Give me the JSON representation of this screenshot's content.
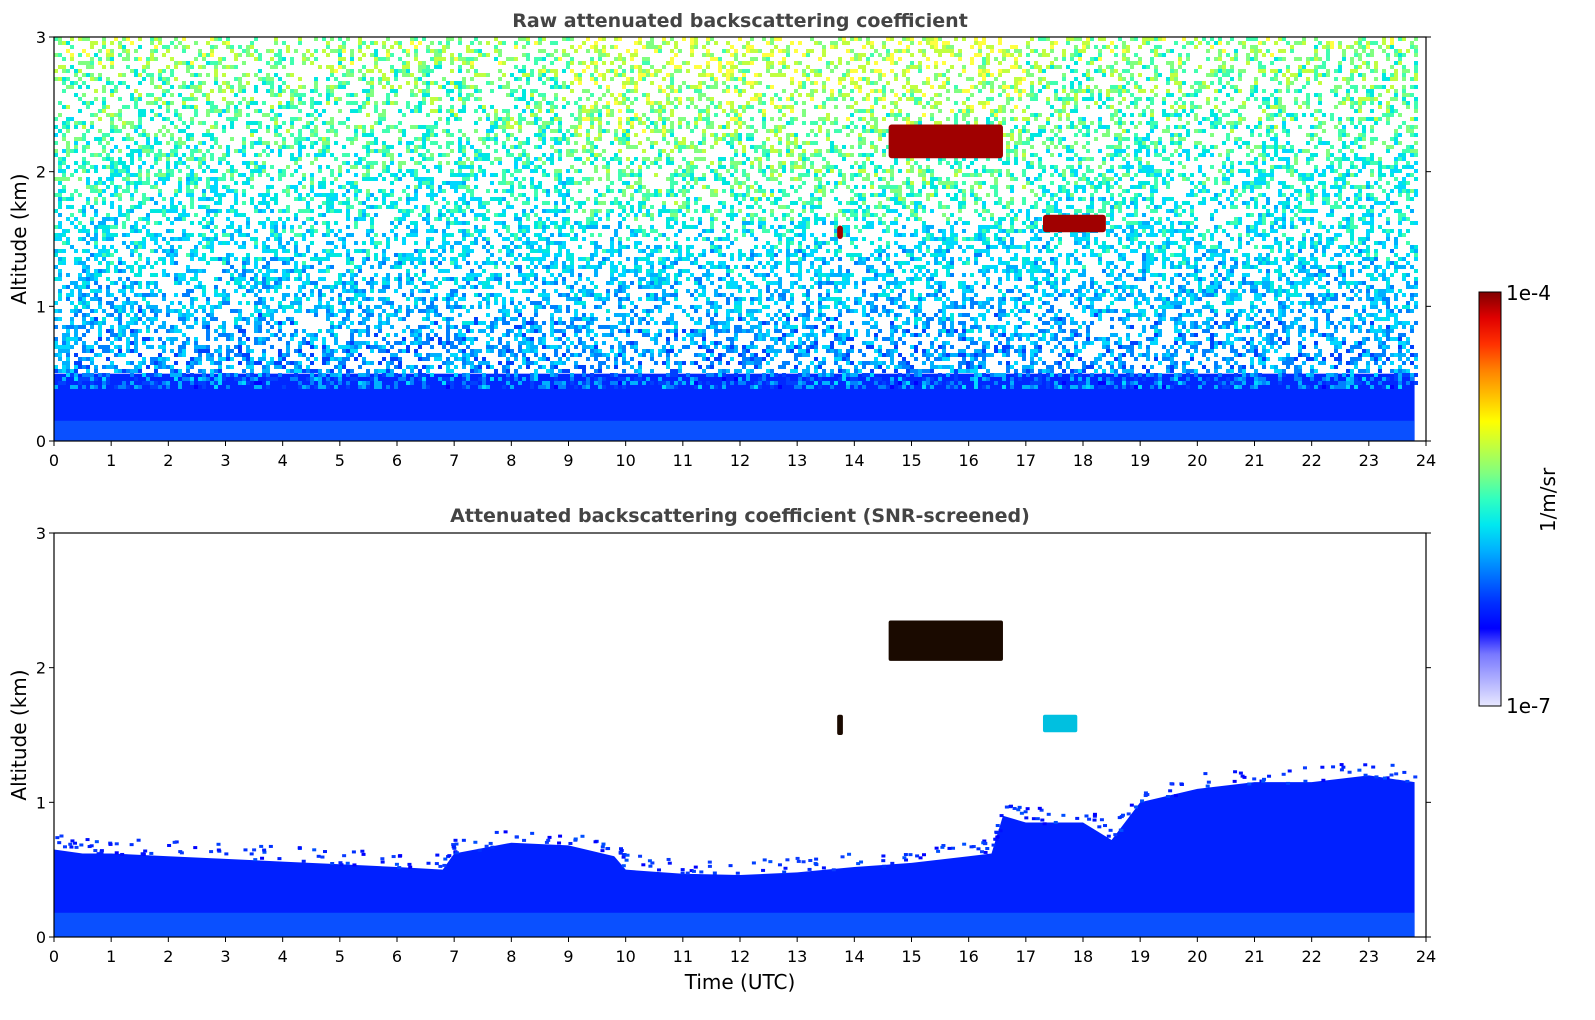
{
  "chart_data": [
    {
      "type": "heatmap",
      "title": "Raw attenuated backscattering coefficient",
      "xlabel": "",
      "ylabel": "Altitude (km)",
      "xlim": [
        0,
        24
      ],
      "ylim": [
        0,
        3
      ],
      "xticks": [
        "0",
        "1",
        "2",
        "3",
        "4",
        "5",
        "6",
        "7",
        "8",
        "9",
        "10",
        "11",
        "12",
        "13",
        "14",
        "15",
        "16",
        "17",
        "18",
        "19",
        "20",
        "21",
        "22",
        "23",
        "24"
      ],
      "yticks": [
        "0",
        "1",
        "2",
        "3"
      ],
      "data_extent_hours": 23.8,
      "features": [
        {
          "kind": "noise_background",
          "description_value": "dense boundary layer below ~0.5 km, noisy signal above"
        },
        {
          "kind": "cloud",
          "time_start": 14.6,
          "time_end": 16.6,
          "alt_start": 2.1,
          "alt_end": 2.35,
          "intensity": "1e-4"
        },
        {
          "kind": "cloud",
          "time_start": 13.7,
          "time_end": 13.8,
          "alt_start": 1.5,
          "alt_end": 1.6,
          "intensity": "1e-4"
        },
        {
          "kind": "cloud",
          "time_start": 17.3,
          "time_end": 18.4,
          "alt_start": 1.55,
          "alt_end": 1.68,
          "intensity": "1e-4"
        }
      ]
    },
    {
      "type": "heatmap",
      "title": "Attenuated backscattering coefficient (SNR-screened)",
      "xlabel": "Time (UTC)",
      "ylabel": "Altitude (km)",
      "xlim": [
        0,
        24
      ],
      "ylim": [
        0,
        3
      ],
      "xticks": [
        "0",
        "1",
        "2",
        "3",
        "4",
        "5",
        "6",
        "7",
        "8",
        "9",
        "10",
        "11",
        "12",
        "13",
        "14",
        "15",
        "16",
        "17",
        "18",
        "19",
        "20",
        "21",
        "22",
        "23",
        "24"
      ],
      "yticks": [
        "0",
        "1",
        "2",
        "3"
      ],
      "data_extent_hours": 23.8,
      "boundary_layer_top_km": {
        "time": [
          0,
          0.5,
          1,
          2,
          3,
          4,
          5,
          6,
          6.8,
          7,
          8,
          9,
          9.8,
          10,
          11,
          12,
          13,
          14,
          15,
          16,
          16.4,
          16.6,
          17,
          18,
          18.5,
          19,
          20,
          21,
          22,
          23,
          23.8
        ],
        "alt": [
          0.65,
          0.62,
          0.62,
          0.6,
          0.58,
          0.56,
          0.54,
          0.52,
          0.5,
          0.62,
          0.7,
          0.68,
          0.6,
          0.5,
          0.47,
          0.46,
          0.48,
          0.52,
          0.55,
          0.6,
          0.62,
          0.9,
          0.85,
          0.85,
          0.72,
          1.0,
          1.1,
          1.15,
          1.15,
          1.2,
          1.15
        ]
      },
      "features": [
        {
          "kind": "cloud",
          "time_start": 14.6,
          "time_end": 16.6,
          "alt_start": 2.05,
          "alt_end": 2.35,
          "intensity": "1e-4"
        },
        {
          "kind": "cloud",
          "time_start": 13.7,
          "time_end": 13.8,
          "alt_start": 1.5,
          "alt_end": 1.65,
          "intensity": "1e-4"
        },
        {
          "kind": "cloud",
          "time_start": 17.3,
          "time_end": 17.9,
          "alt_start": 1.52,
          "alt_end": 1.65,
          "intensity": "3e-6"
        }
      ]
    }
  ],
  "colorbar": {
    "label": "1/m/sr",
    "max_label": "1e-4",
    "min_label": "1e-7",
    "colors": [
      "#e8e8ff",
      "#b0b0ff",
      "#7878ff",
      "#0000ff",
      "#0030ff",
      "#0070ff",
      "#00b0ff",
      "#00e8f0",
      "#30ffc0",
      "#80ff80",
      "#c0ff40",
      "#ffff00",
      "#ffc000",
      "#ff8000",
      "#ff3000",
      "#e00000",
      "#800000"
    ]
  }
}
